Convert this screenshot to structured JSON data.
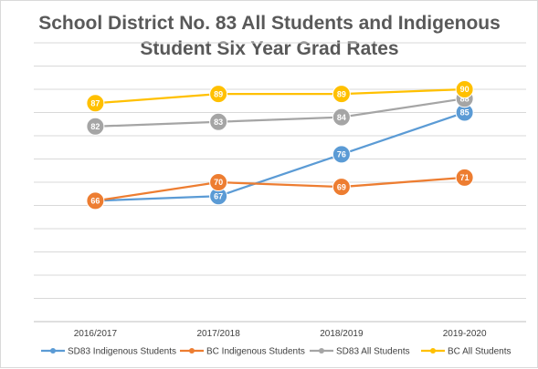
{
  "chart_data": {
    "type": "line",
    "title_lines": [
      "School District No. 83 All Students and Indigenous",
      "Student Six Year Grad Rates"
    ],
    "categories": [
      "2016/2017",
      "2017/2018",
      "2018/2019",
      "2019-2020"
    ],
    "ylim": [
      40,
      100
    ],
    "grid": true,
    "legend_position": "bottom",
    "series": [
      {
        "name": "SD83 Indigenous Students",
        "color": "#5b9bd5",
        "values": [
          66,
          67,
          76,
          85
        ]
      },
      {
        "name": "BC Indigenous Students",
        "color": "#ed7d31",
        "values": [
          66,
          70,
          69,
          71
        ]
      },
      {
        "name": "SD83 All Students",
        "color": "#a5a5a5",
        "values": [
          82,
          83,
          84,
          88
        ]
      },
      {
        "name": "BC All Students",
        "color": "#ffc000",
        "values": [
          87,
          89,
          89,
          90
        ]
      }
    ],
    "data_labels": [
      {
        "series": 0,
        "labels": [
          null,
          67,
          76,
          85
        ]
      },
      {
        "series": 1,
        "labels": [
          66,
          70,
          69,
          71
        ]
      },
      {
        "series": 2,
        "labels": [
          82,
          83,
          84,
          88
        ]
      },
      {
        "series": 3,
        "labels": [
          87,
          89,
          89,
          90
        ]
      }
    ]
  }
}
